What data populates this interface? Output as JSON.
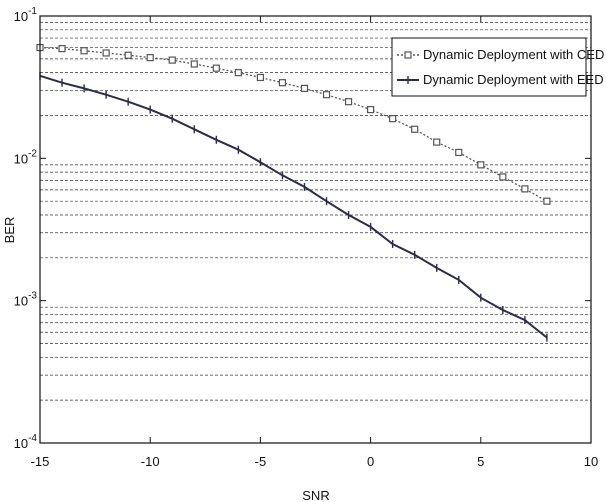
{
  "chart_data": {
    "type": "line",
    "title": "",
    "xlabel": "SNR",
    "ylabel": "BER",
    "xscale": "linear",
    "yscale": "log",
    "xlim": [
      -15,
      10
    ],
    "ylim": [
      0.0001,
      0.1
    ],
    "xticks": [
      -15,
      -10,
      -5,
      0,
      5,
      10
    ],
    "xtick_labels": [
      "-15",
      "-10",
      "-5",
      "0",
      "5",
      "10"
    ],
    "yticks": [
      0.0001,
      0.001,
      0.01,
      0.1
    ],
    "ytick_labels": [
      {
        "base": "10",
        "exp": "-4"
      },
      {
        "base": "10",
        "exp": "-3"
      },
      {
        "base": "10",
        "exp": "-2"
      },
      {
        "base": "10",
        "exp": "-1"
      }
    ],
    "grid": "horizontal dashed at minor decades",
    "legend_position": "top-right",
    "x": [
      -15,
      -14,
      -13,
      -12,
      -11,
      -10,
      -9,
      -8,
      -7,
      -6,
      -5,
      -4,
      -3,
      -2,
      -1,
      0,
      1,
      2,
      3,
      4,
      5,
      6,
      7,
      8
    ],
    "series": [
      {
        "name": "Dynamic Deployment with CED",
        "color": "#555555",
        "line_style": "dotted",
        "marker": "square",
        "values": [
          0.06,
          0.059,
          0.057,
          0.055,
          0.053,
          0.051,
          0.049,
          0.046,
          0.043,
          0.04,
          0.037,
          0.034,
          0.031,
          0.028,
          0.025,
          0.022,
          0.019,
          0.016,
          0.013,
          0.011,
          0.009,
          0.0074,
          0.0061,
          0.005
        ]
      },
      {
        "name": "Dynamic Deployment with EED",
        "color": "#2b2d4a",
        "line_style": "solid",
        "marker": "plus",
        "values": [
          0.038,
          0.034,
          0.031,
          0.028,
          0.025,
          0.022,
          0.019,
          0.016,
          0.0135,
          0.0115,
          0.0094,
          0.0076,
          0.0063,
          0.005,
          0.004,
          0.0033,
          0.0025,
          0.0021,
          0.0017,
          0.0014,
          0.00105,
          0.00086,
          0.00073,
          0.00055
        ]
      }
    ]
  }
}
